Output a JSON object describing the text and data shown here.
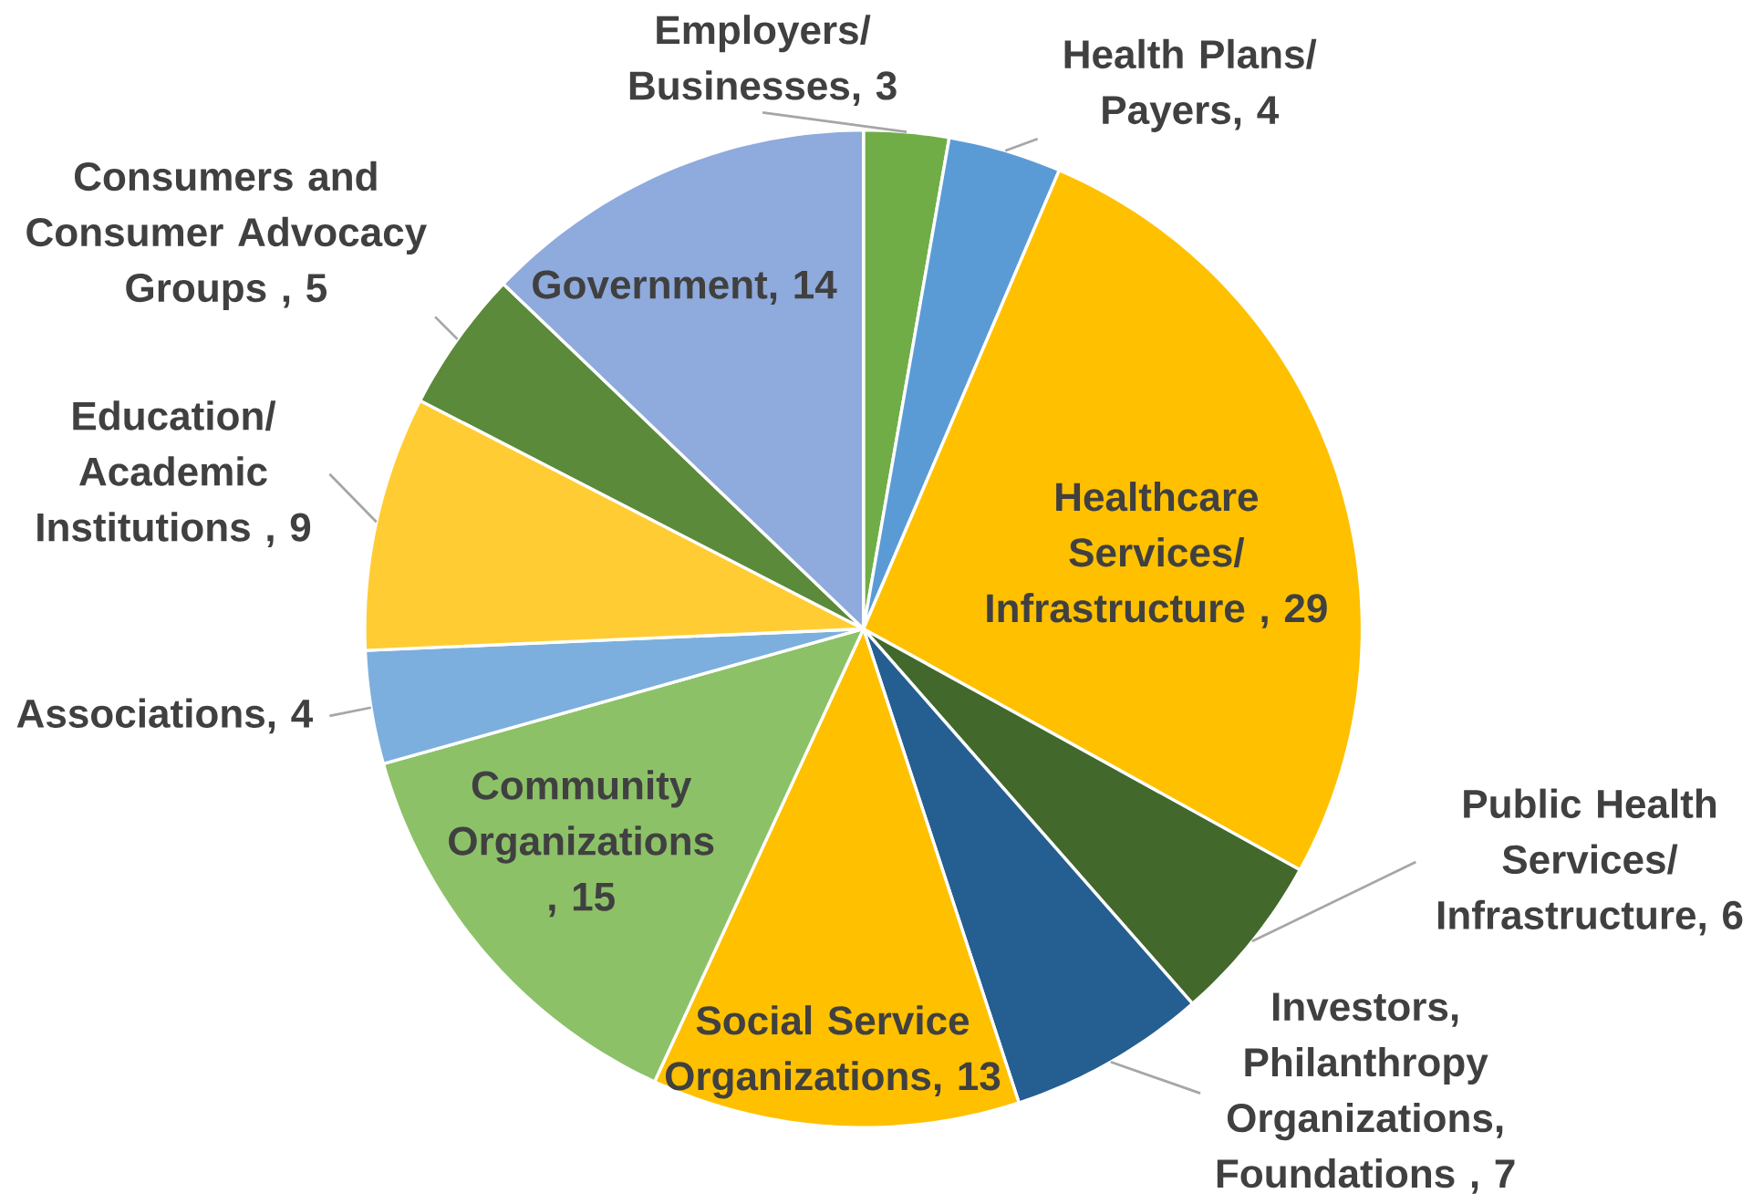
{
  "chart_data": {
    "type": "pie",
    "categories": [
      "Employers/ Businesses",
      "Health Plans/ Payers",
      "Healthcare Services/ Infrastructure",
      "Public Health Services/ Infrastructure",
      "Investors, Philanthropy Organizations, Foundations",
      "Social Service Organizations",
      "Community Organizations",
      "Associations",
      "Education/ Academic Institutions",
      "Consumers and Consumer Advocacy Groups",
      "Government"
    ],
    "values": [
      3,
      4,
      29,
      6,
      7,
      13,
      15,
      4,
      9,
      5,
      14
    ],
    "colors": [
      "#70ad47",
      "#5b9bd5",
      "#ffc000",
      "#43682b",
      "#255e91",
      "#ffc000",
      "#8cc168",
      "#7cafdd",
      "#ffcd33",
      "#5a8a3a",
      "#8faadc"
    ],
    "value_labels": [
      ", 3",
      ", 4",
      " , 29",
      ", 6",
      " , 7",
      ", 13",
      " , 15",
      ", 4",
      " , 9",
      " , 5",
      ", 14"
    ]
  }
}
